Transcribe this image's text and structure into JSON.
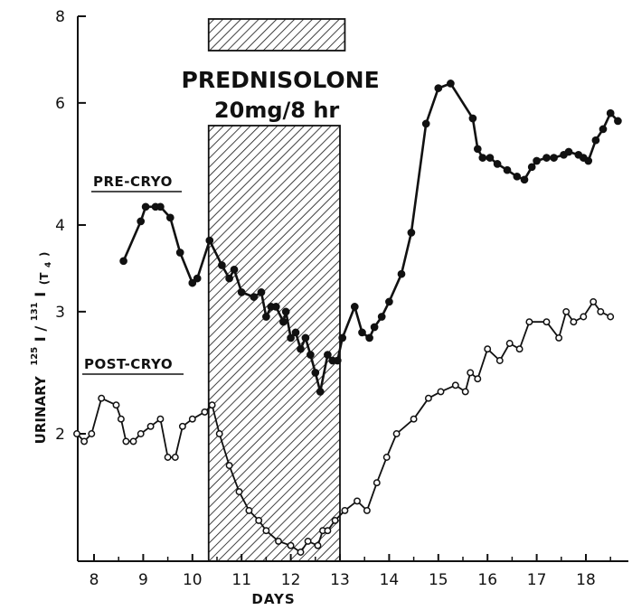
{
  "chart_data": {
    "type": "line",
    "xlabel": "DAYS",
    "ylabel_parts": {
      "urinary": "URINARY",
      "sup1": "125",
      "iodine1": "I",
      "slash": "/",
      "sup2": "131",
      "iodine2": "I",
      "sub_open": "(T",
      "sub_4": "4",
      "sub_close": ")"
    },
    "xlim": [
      7.6,
      18.75
    ],
    "ylim": [
      1.3,
      8
    ],
    "yscale": "log",
    "x_ticks": [
      "8",
      "9",
      "10",
      "11",
      "12",
      "13",
      "14",
      "15",
      "16",
      "17",
      "18"
    ],
    "y_ticks": [
      "2",
      "3",
      "4",
      "6",
      "8"
    ],
    "grid": false,
    "treatment": {
      "name": "PREDNISOLONE",
      "dose": "20mg/8 hr",
      "x_start": 10.33,
      "x_end": 13.0
    },
    "series": [
      {
        "name": "PRE-CRYO",
        "marker": "filled",
        "x": [
          8.6,
          8.95,
          9.05,
          9.25,
          9.35,
          9.55,
          9.75,
          10.0,
          10.1,
          10.35,
          10.6,
          10.75,
          10.85,
          11.0,
          11.25,
          11.4,
          11.5,
          11.6,
          11.7,
          11.85,
          11.9,
          12.0,
          12.1,
          12.2,
          12.3,
          12.4,
          12.5,
          12.6,
          12.75,
          12.85,
          12.95,
          13.05,
          13.3,
          13.45,
          13.6,
          13.7,
          13.85,
          14.0,
          14.25,
          14.45,
          14.75,
          15.0,
          15.25,
          15.7,
          15.8,
          15.9,
          16.05,
          16.2,
          16.4,
          16.6,
          16.75,
          16.9,
          17.0,
          17.2,
          17.35,
          17.55,
          17.65,
          17.85,
          17.95,
          18.05,
          18.2,
          18.35,
          18.5,
          18.65
        ],
        "y": [
          3.55,
          4.05,
          4.25,
          4.25,
          4.25,
          4.1,
          3.65,
          3.3,
          3.35,
          3.8,
          3.5,
          3.35,
          3.45,
          3.2,
          3.15,
          3.2,
          2.95,
          3.05,
          3.05,
          2.9,
          3.0,
          2.75,
          2.8,
          2.65,
          2.75,
          2.6,
          2.45,
          2.3,
          2.6,
          2.55,
          2.55,
          2.75,
          3.05,
          2.8,
          2.75,
          2.85,
          2.95,
          3.1,
          3.4,
          3.9,
          5.6,
          6.3,
          6.4,
          5.7,
          5.15,
          5.0,
          5.0,
          4.9,
          4.8,
          4.7,
          4.65,
          4.85,
          4.95,
          5.0,
          5.0,
          5.05,
          5.1,
          5.05,
          5.0,
          4.95,
          5.3,
          5.5,
          5.8,
          5.65
        ]
      },
      {
        "name": "POST-CRYO",
        "marker": "open",
        "x": [
          7.65,
          7.8,
          7.95,
          8.15,
          8.45,
          8.55,
          8.65,
          8.8,
          8.95,
          9.15,
          9.35,
          9.5,
          9.65,
          9.8,
          10.0,
          10.25,
          10.4,
          10.55,
          10.75,
          10.95,
          11.15,
          11.35,
          11.5,
          11.75,
          12.0,
          12.2,
          12.35,
          12.55,
          12.65,
          12.75,
          12.9,
          13.1,
          13.35,
          13.55,
          13.75,
          13.95,
          14.15,
          14.5,
          14.8,
          15.05,
          15.35,
          15.55,
          15.65,
          15.8,
          16.0,
          16.25,
          16.45,
          16.65,
          16.85,
          17.2,
          17.45,
          17.6,
          17.75,
          17.95,
          18.15,
          18.3,
          18.5
        ],
        "y": [
          2.0,
          1.95,
          2.0,
          2.25,
          2.2,
          2.1,
          1.95,
          1.95,
          2.0,
          2.05,
          2.1,
          1.85,
          1.85,
          2.05,
          2.1,
          2.15,
          2.2,
          2.0,
          1.8,
          1.65,
          1.55,
          1.5,
          1.45,
          1.4,
          1.38,
          1.35,
          1.4,
          1.38,
          1.45,
          1.45,
          1.5,
          1.55,
          1.6,
          1.55,
          1.7,
          1.85,
          2.0,
          2.1,
          2.25,
          2.3,
          2.35,
          2.3,
          2.45,
          2.4,
          2.65,
          2.55,
          2.7,
          2.65,
          2.9,
          2.9,
          2.75,
          3.0,
          2.9,
          2.95,
          3.1,
          3.0,
          2.95
        ]
      }
    ]
  }
}
